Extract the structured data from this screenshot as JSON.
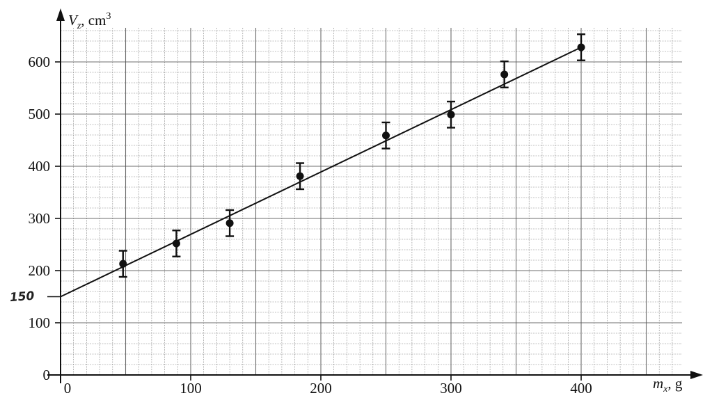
{
  "chart_data": {
    "type": "scatter",
    "x_axis": {
      "label_var": "m",
      "label_sub": "x",
      "label_unit": ", g",
      "ticks": [
        0,
        100,
        200,
        300,
        400
      ],
      "range": [
        0,
        480
      ]
    },
    "y_axis": {
      "label_var": "V",
      "label_sub": "z",
      "label_unit": ", cm",
      "label_sup": "3",
      "ticks": [
        0,
        100,
        200,
        300,
        400,
        500,
        600
      ],
      "range": [
        0,
        660
      ]
    },
    "grid": true,
    "points": [
      {
        "x": 48,
        "y": 213,
        "err": 25
      },
      {
        "x": 89,
        "y": 252,
        "err": 25
      },
      {
        "x": 130,
        "y": 291,
        "err": 25
      },
      {
        "x": 184,
        "y": 381,
        "err": 25
      },
      {
        "x": 250,
        "y": 459,
        "err": 25
      },
      {
        "x": 300,
        "y": 499,
        "err": 25
      },
      {
        "x": 341,
        "y": 576,
        "err": 25
      },
      {
        "x": 400,
        "y": 628,
        "err": 25
      }
    ],
    "fit_line": {
      "x": [
        0,
        400
      ],
      "y": [
        150,
        628
      ]
    },
    "annotation": {
      "text": "150",
      "y": 150
    },
    "colors": {
      "ink": "#111111",
      "grid": "#555555",
      "background": "#ffffff"
    }
  }
}
